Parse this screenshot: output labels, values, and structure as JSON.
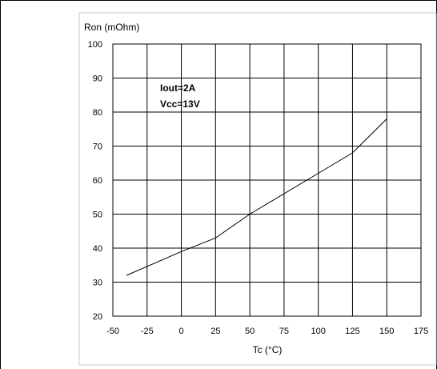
{
  "chart_data": {
    "type": "line",
    "title": "",
    "ylabel": "Ron (mOhm)",
    "xlabel": "Tc (°C)",
    "xlim": [
      -50,
      175
    ],
    "ylim": [
      20,
      100
    ],
    "x_ticks": [
      -50,
      -25,
      0,
      25,
      50,
      75,
      100,
      125,
      150,
      175
    ],
    "y_ticks": [
      20,
      30,
      40,
      50,
      60,
      70,
      80,
      90,
      100
    ],
    "grid": true,
    "annotations": [
      "Iout=2A",
      "Vcc=13V"
    ],
    "series": [
      {
        "x": [
          -40,
          0,
          25,
          50,
          100,
          125,
          150
        ],
        "y": [
          32,
          39,
          43,
          50,
          62,
          68,
          78
        ]
      }
    ]
  }
}
